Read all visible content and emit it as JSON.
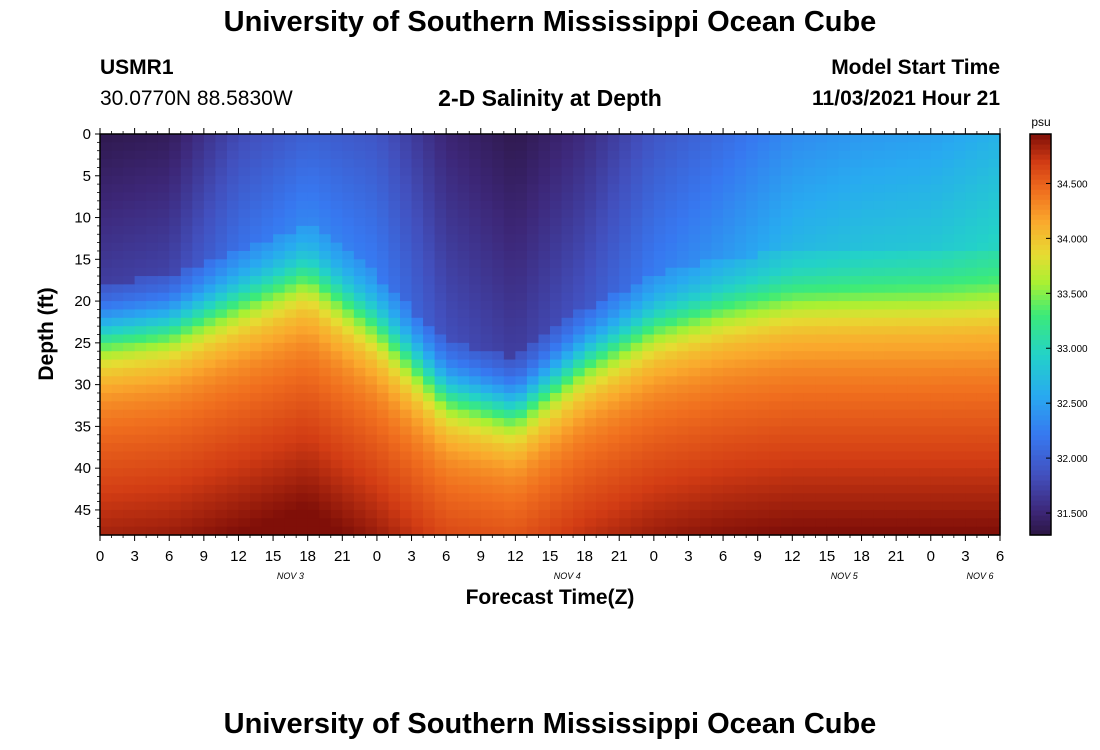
{
  "header": {
    "title": "University of Southern Mississippi Ocean Cube",
    "station": "USMR1",
    "coordinates": "30.0770N  88.5830W",
    "plot_title": "2-D Salinity at Depth",
    "model_label": "Model Start Time",
    "model_time": "11/03/2021 Hour 21"
  },
  "footer": {
    "title": "University of Southern Mississippi Ocean Cube"
  },
  "chart_data": {
    "type": "heatmap",
    "title": "2-D Salinity at Depth",
    "xlabel": "Forecast Time(Z)",
    "ylabel": "Depth (ft)",
    "colorbar_label": "psu",
    "x_tick_labels": [
      "0",
      "3",
      "6",
      "9",
      "12",
      "15",
      "18",
      "21",
      "0",
      "3",
      "6",
      "9",
      "12",
      "15",
      "18",
      "21",
      "0",
      "3",
      "6",
      "9",
      "12",
      "15",
      "18",
      "21",
      "0",
      "3",
      "6"
    ],
    "x_range_hours": [
      0,
      78
    ],
    "date_labels": [
      {
        "label": "NOV 3",
        "hour": 16.5
      },
      {
        "label": "NOV 4",
        "hour": 40.5
      },
      {
        "label": "NOV 5",
        "hour": 64.5
      },
      {
        "label": "NOV 6",
        "hour": 79.5
      }
    ],
    "y_ticks": [
      0,
      5,
      10,
      15,
      20,
      25,
      30,
      35,
      40,
      45
    ],
    "ylim": [
      0,
      48
    ],
    "colorbar_ticks": [
      "31.500",
      "32.000",
      "32.500",
      "33.000",
      "33.500",
      "34.000",
      "34.500"
    ],
    "colorbar_range": [
      31.3,
      34.95
    ],
    "salinity_field_note": "Salinity (psu) vs forecast hour and depth; fresh lens near surface, saline water at depth",
    "interface_depth_ft": {
      "hours": [
        0,
        6,
        12,
        18,
        24,
        30,
        36,
        42,
        48,
        54,
        60,
        66,
        72,
        78
      ],
      "depth": [
        24,
        23,
        20,
        17,
        23,
        31,
        33,
        27,
        23,
        21,
        20,
        20,
        20,
        20
      ]
    },
    "surface_salinity_psu": {
      "hours": [
        0,
        6,
        12,
        18,
        24,
        30,
        36,
        42,
        48,
        54,
        60,
        66,
        72,
        78
      ],
      "value": [
        31.35,
        31.4,
        31.8,
        32.0,
        31.9,
        31.5,
        31.35,
        31.55,
        31.9,
        32.1,
        32.35,
        32.45,
        32.5,
        32.65
      ]
    }
  }
}
